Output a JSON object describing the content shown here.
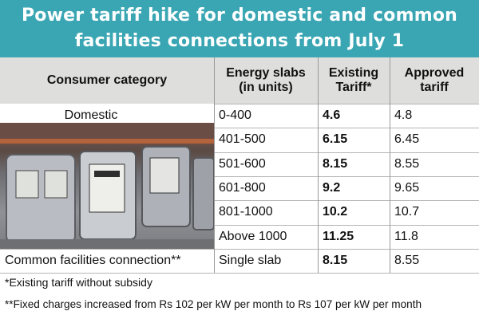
{
  "title_line1": "Power tariff hike for domestic and common",
  "title_line2": "facilities connections from July 1",
  "chart_data": {
    "type": "table",
    "columns": [
      "Consumer category",
      "Energy slabs (in units)",
      "Existing Tariff*",
      "Approved tariff"
    ],
    "header": {
      "category": "Consumer category",
      "slabs_line1": "Energy slabs",
      "slabs_line2": "(in units)",
      "existing_line1": "Existing",
      "existing_line2": "Tariff*",
      "approved_line1": "Approved",
      "approved_line2": "tariff"
    },
    "rows": [
      {
        "category": "Domestic",
        "slab": "0-400",
        "existing": "4.6",
        "approved": "4.8"
      },
      {
        "category": "",
        "slab": "401-500",
        "existing": "6.15",
        "approved": "6.45"
      },
      {
        "category": "",
        "slab": "501-600",
        "existing": "8.15",
        "approved": "8.55"
      },
      {
        "category": "",
        "slab": "601-800",
        "existing": "9.2",
        "approved": "9.65"
      },
      {
        "category": "",
        "slab": "801-1000",
        "existing": "10.2",
        "approved": "10.7"
      },
      {
        "category": "",
        "slab": "Above 1000",
        "existing": "11.25",
        "approved": "11.8"
      },
      {
        "category": "Common facilities connection**",
        "slab": "Single slab",
        "existing": "8.15",
        "approved": "8.55"
      }
    ]
  },
  "notes": {
    "note1": "*Existing tariff without subsidy",
    "note2": "**Fixed charges increased from Rs 102 per kW per month to Rs 107 per kW per month"
  },
  "colors": {
    "banner": "#3aa6b3",
    "header_bg": "#dededc"
  },
  "photo_icon": "electricity-meters-photo"
}
